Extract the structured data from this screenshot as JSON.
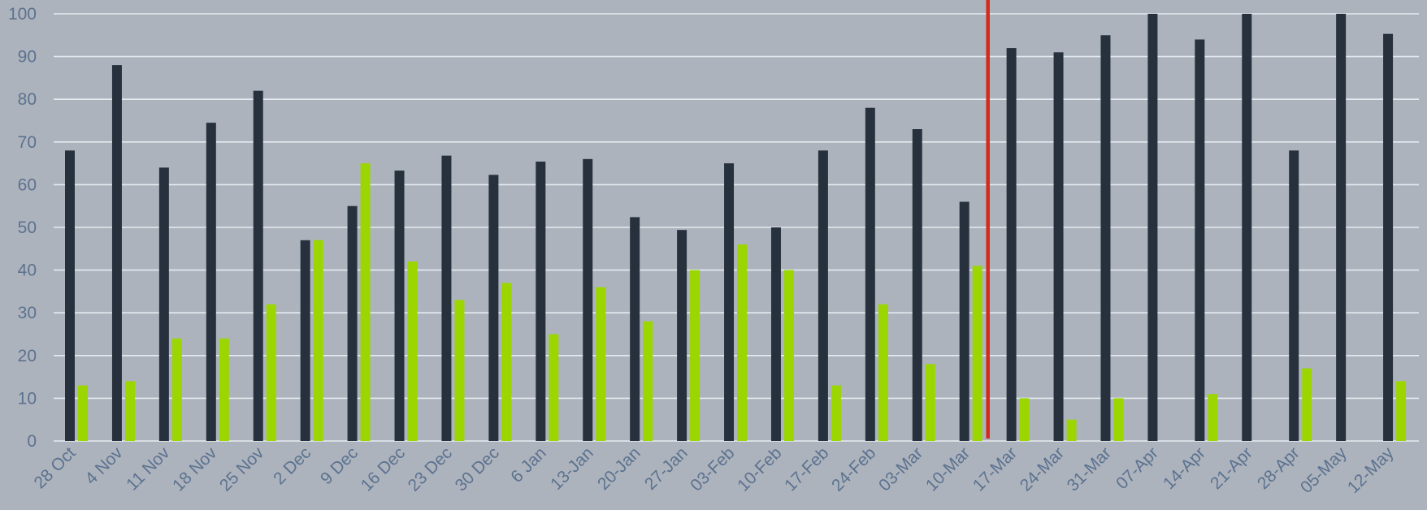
{
  "chart_data": {
    "type": "bar",
    "categories": [
      "28 Oct",
      "4 Nov",
      "11 Nov",
      "18 Nov",
      "25 Nov",
      "2 Dec",
      "9 Dec",
      "16 Dec",
      "23 Dec",
      "30 Dec",
      "6 Jan",
      "13-Jan",
      "20-Jan",
      "27-Jan",
      "03-Feb",
      "10-Feb",
      "17-Feb",
      "24-Feb",
      "03-Mar",
      "10-Mar",
      "17-Mar",
      "24-Mar",
      "31-Mar",
      "07-Apr",
      "14-Apr",
      "21-Apr",
      "28-Apr",
      "05-May",
      "12-May"
    ],
    "series": [
      {
        "values": [
          68,
          88,
          64,
          74.5,
          82,
          47,
          55,
          63.3,
          66.8,
          62.3,
          65.4,
          66,
          52.4,
          49.4,
          65,
          50,
          68,
          78,
          73,
          56,
          92,
          91,
          95,
          100,
          94,
          100,
          68,
          100,
          95.3
        ]
      },
      {
        "values": [
          13,
          14,
          24,
          24,
          32,
          47,
          65,
          42,
          33,
          37,
          25,
          36,
          28,
          40,
          46,
          40,
          13,
          32,
          18,
          41,
          10,
          5,
          10,
          0,
          11,
          0,
          17,
          0,
          14
        ]
      }
    ],
    "yticks": [
      "0",
      "10",
      "20",
      "30",
      "40",
      "50",
      "60",
      "70",
      "80",
      "90",
      "100"
    ],
    "ylim": [
      0,
      100
    ],
    "xlabel": "",
    "ylabel": "",
    "title": "",
    "grid": true,
    "marker_line_between": [
      "10-Mar",
      "17-Mar"
    ],
    "colors": {
      "background": "#adb3bc",
      "series_dark": "#27313d",
      "series_green": "#9bd600",
      "marker_line": "#d42a1a",
      "grid": "#e6ebf0",
      "tick_text": "#5b7290"
    }
  }
}
